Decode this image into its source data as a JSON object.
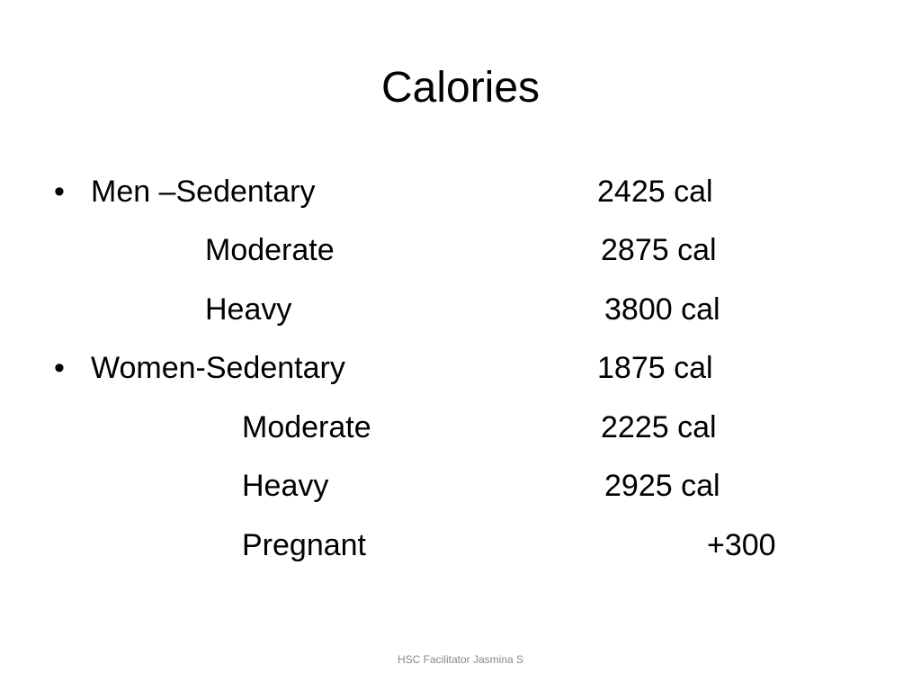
{
  "title": "Calories",
  "items": [
    {
      "label": "Men –Sedentary",
      "value": "2425 cal",
      "rows": [
        {
          "label": "Moderate",
          "value": "2875 cal"
        },
        {
          "label": "Heavy",
          "value": "3800 cal"
        }
      ]
    },
    {
      "label": "Women-Sedentary",
      "value": "1875 cal",
      "rows": [
        {
          "label": "Moderate",
          "value": "2225 cal"
        },
        {
          "label": "Heavy",
          "value": "2925 cal"
        },
        {
          "label": "Pregnant",
          "value": "+300"
        }
      ]
    }
  ],
  "footer": "HSC Facilitator Jasmina S"
}
